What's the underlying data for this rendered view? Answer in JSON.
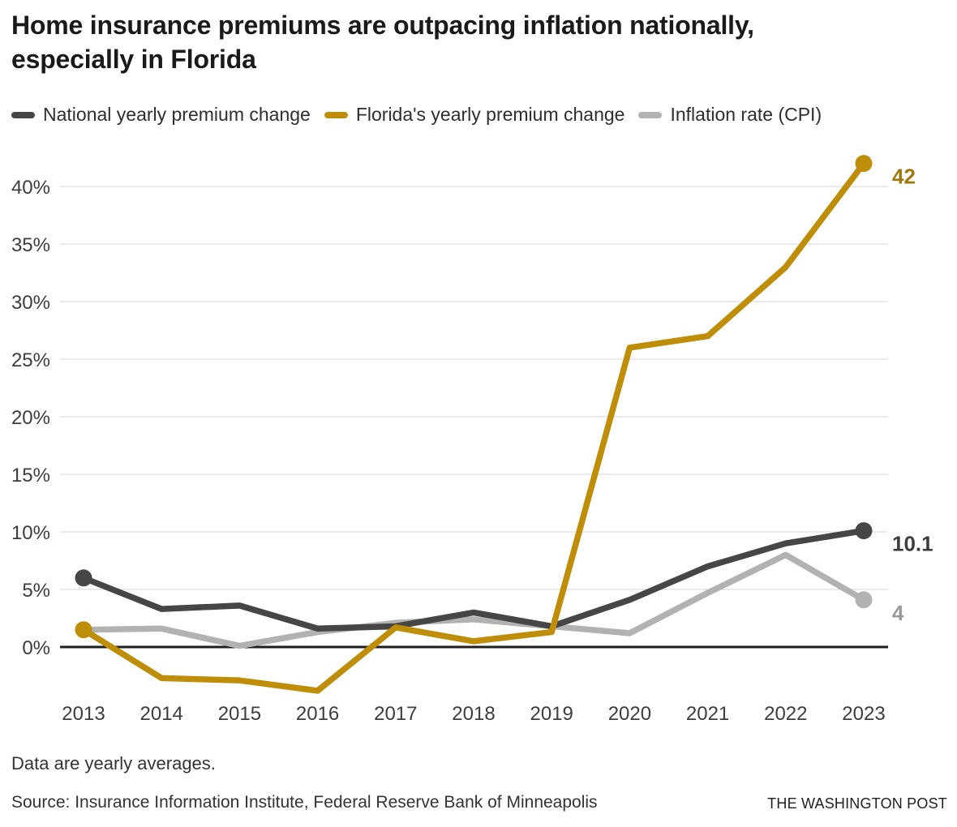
{
  "title": "Home insurance premiums are outpacing inflation nationally, especially in Florida",
  "title_lines": [
    "Home insurance premiums are outpacing inflation nationally,",
    "especially in Florida"
  ],
  "note": "Data are yearly averages.",
  "source": "Source: Insurance Information Institute, Federal Reserve Bank of Minneapolis",
  "credit": "THE WASHINGTON POST",
  "colors": {
    "national": "#464646",
    "florida": "#bf8e08",
    "inflation": "#b2b2b2",
    "florida_label": "#9d780a",
    "inflation_label": "#9a9a9a",
    "grid": "#e4e4e4",
    "axis": "#1f1f1f",
    "text": "#1a1a1a"
  },
  "chart_data": {
    "type": "line",
    "x": [
      2013,
      2014,
      2015,
      2016,
      2017,
      2018,
      2019,
      2020,
      2021,
      2022,
      2023
    ],
    "series": [
      {
        "name": "National yearly premium change",
        "color": "#464646",
        "label_color": "#3d3d3d",
        "values": [
          6.0,
          3.3,
          3.6,
          1.6,
          1.8,
          3.0,
          1.8,
          4.1,
          7.0,
          9.0,
          10.1
        ],
        "end_label": "10.1",
        "start_dot": true,
        "z": 1
      },
      {
        "name": "Florida's yearly premium change",
        "color": "#bf8e08",
        "label_color": "#9d780a",
        "values": [
          1.5,
          -2.7,
          -2.9,
          -3.8,
          1.7,
          0.5,
          1.3,
          26,
          27,
          33,
          42
        ],
        "end_label": "42",
        "start_dot": true,
        "z": 2
      },
      {
        "name": "Inflation rate (CPI)",
        "color": "#b2b2b2",
        "label_color": "#9a9a9a",
        "values": [
          1.5,
          1.6,
          0.1,
          1.3,
          2.1,
          2.4,
          1.8,
          1.2,
          4.7,
          8.0,
          4.1
        ],
        "end_label": "4",
        "start_dot": false,
        "z": 0
      }
    ],
    "yticks": [
      0,
      5,
      10,
      15,
      20,
      25,
      30,
      35,
      40
    ],
    "ytick_suffix": "%",
    "ylim": [
      -5,
      43
    ],
    "grid": true,
    "legend_position": "top"
  }
}
